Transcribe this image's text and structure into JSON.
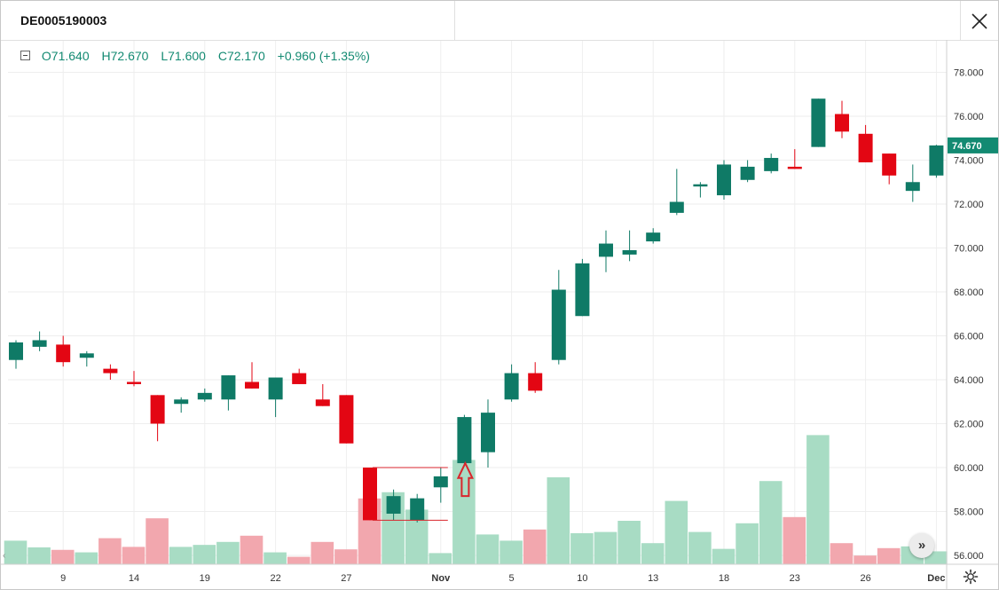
{
  "window": {
    "title": "DE0005190003"
  },
  "legend": {
    "open": "O71.640",
    "high": "H72.670",
    "low": "L71.600",
    "close": "C72.170",
    "change": "+0.960 (+1.35%)"
  },
  "price_tag": "74.670",
  "colors": {
    "up": "#0f7a66",
    "down": "#e30613",
    "volume_up": "#a8dcc4",
    "volume_down": "#f2a7ae",
    "price_tag": "#138a72",
    "annotation": "#d9262c"
  },
  "icons": [
    "close-icon",
    "collapse-icon",
    "scroll-to-latest-icon",
    "settings-icon",
    "arrow-up-annotation-icon"
  ],
  "chart_data": {
    "type": "candlestick",
    "ylim": [
      55.5,
      79.2
    ],
    "y_ticks": [
      "56.000",
      "58.000",
      "60.000",
      "62.000",
      "64.000",
      "66.000",
      "68.000",
      "70.000",
      "72.000",
      "74.000",
      "76.000",
      "78.000"
    ],
    "x_labels": [
      {
        "label": "9",
        "index": 2
      },
      {
        "label": "14",
        "index": 5
      },
      {
        "label": "19",
        "index": 8
      },
      {
        "label": "22",
        "index": 11
      },
      {
        "label": "27",
        "index": 14
      },
      {
        "label": "Nov",
        "index": 18
      },
      {
        "label": "5",
        "index": 21
      },
      {
        "label": "10",
        "index": 24
      },
      {
        "label": "13",
        "index": 27
      },
      {
        "label": "18",
        "index": 30
      },
      {
        "label": "23",
        "index": 33
      },
      {
        "label": "26",
        "index": 36
      },
      {
        "label": "Dec",
        "index": 39
      }
    ],
    "candles": [
      {
        "o": 64.9,
        "h": 65.8,
        "l": 64.5,
        "c": 65.7
      },
      {
        "o": 65.5,
        "h": 66.2,
        "l": 65.3,
        "c": 65.8
      },
      {
        "o": 65.6,
        "h": 66.0,
        "l": 64.6,
        "c": 64.8
      },
      {
        "o": 65.0,
        "h": 65.3,
        "l": 64.6,
        "c": 65.2
      },
      {
        "o": 64.5,
        "h": 64.7,
        "l": 64.0,
        "c": 64.3
      },
      {
        "o": 63.9,
        "h": 64.4,
        "l": 63.7,
        "c": 63.8
      },
      {
        "o": 63.3,
        "h": 63.3,
        "l": 61.2,
        "c": 62.0
      },
      {
        "o": 62.9,
        "h": 63.2,
        "l": 62.5,
        "c": 63.1
      },
      {
        "o": 63.1,
        "h": 63.6,
        "l": 63.0,
        "c": 63.4
      },
      {
        "o": 63.1,
        "h": 64.2,
        "l": 62.6,
        "c": 64.2
      },
      {
        "o": 63.9,
        "h": 64.8,
        "l": 63.6,
        "c": 63.6
      },
      {
        "o": 63.1,
        "h": 64.1,
        "l": 62.3,
        "c": 64.1
      },
      {
        "o": 64.3,
        "h": 64.5,
        "l": 63.8,
        "c": 63.8
      },
      {
        "o": 63.1,
        "h": 63.8,
        "l": 62.8,
        "c": 62.8
      },
      {
        "o": 63.3,
        "h": 63.3,
        "l": 61.1,
        "c": 61.1
      },
      {
        "o": 60.0,
        "h": 60.0,
        "l": 57.6,
        "c": 57.6
      },
      {
        "o": 57.9,
        "h": 59.0,
        "l": 57.6,
        "c": 58.7
      },
      {
        "o": 57.6,
        "h": 58.8,
        "l": 57.5,
        "c": 58.6
      },
      {
        "o": 59.1,
        "h": 60.0,
        "l": 58.4,
        "c": 59.6
      },
      {
        "o": 60.2,
        "h": 62.4,
        "l": 60.1,
        "c": 62.3
      },
      {
        "o": 60.7,
        "h": 63.1,
        "l": 60.0,
        "c": 62.5
      },
      {
        "o": 63.1,
        "h": 64.7,
        "l": 63.0,
        "c": 64.3
      },
      {
        "o": 64.3,
        "h": 64.8,
        "l": 63.4,
        "c": 63.5
      },
      {
        "o": 64.9,
        "h": 69.0,
        "l": 64.7,
        "c": 68.1
      },
      {
        "o": 66.9,
        "h": 69.5,
        "l": 66.9,
        "c": 69.3
      },
      {
        "o": 69.6,
        "h": 70.8,
        "l": 68.9,
        "c": 70.2
      },
      {
        "o": 69.7,
        "h": 70.8,
        "l": 69.4,
        "c": 69.9
      },
      {
        "o": 70.3,
        "h": 70.9,
        "l": 70.2,
        "c": 70.7
      },
      {
        "o": 71.6,
        "h": 73.6,
        "l": 71.5,
        "c": 72.1
      },
      {
        "o": 72.8,
        "h": 73.0,
        "l": 72.3,
        "c": 72.9
      },
      {
        "o": 72.4,
        "h": 74.0,
        "l": 72.2,
        "c": 73.8
      },
      {
        "o": 73.1,
        "h": 74.0,
        "l": 73.0,
        "c": 73.7
      },
      {
        "o": 73.5,
        "h": 74.3,
        "l": 73.4,
        "c": 74.1
      },
      {
        "o": 73.7,
        "h": 74.5,
        "l": 73.6,
        "c": 73.6
      },
      {
        "o": 74.6,
        "h": 76.8,
        "l": 74.6,
        "c": 76.8
      },
      {
        "o": 76.1,
        "h": 76.7,
        "l": 75.0,
        "c": 75.3
      },
      {
        "o": 75.2,
        "h": 75.6,
        "l": 73.9,
        "c": 73.9
      },
      {
        "o": 74.3,
        "h": 74.3,
        "l": 72.9,
        "c": 73.3
      },
      {
        "o": 72.6,
        "h": 73.8,
        "l": 72.1,
        "c": 73.0
      },
      {
        "o": 73.3,
        "h": 74.7,
        "l": 73.2,
        "c": 74.67
      }
    ],
    "volume": [
      {
        "v": 0.95,
        "dir": "up"
      },
      {
        "v": 0.68,
        "dir": "up"
      },
      {
        "v": 0.58,
        "dir": "down"
      },
      {
        "v": 0.48,
        "dir": "up"
      },
      {
        "v": 1.05,
        "dir": "down"
      },
      {
        "v": 0.7,
        "dir": "down"
      },
      {
        "v": 1.85,
        "dir": "down"
      },
      {
        "v": 0.7,
        "dir": "up"
      },
      {
        "v": 0.78,
        "dir": "up"
      },
      {
        "v": 0.9,
        "dir": "up"
      },
      {
        "v": 1.15,
        "dir": "down"
      },
      {
        "v": 0.48,
        "dir": "up"
      },
      {
        "v": 0.3,
        "dir": "down"
      },
      {
        "v": 0.9,
        "dir": "down"
      },
      {
        "v": 0.6,
        "dir": "down"
      },
      {
        "v": 2.65,
        "dir": "down"
      },
      {
        "v": 2.9,
        "dir": "up"
      },
      {
        "v": 2.2,
        "dir": "up"
      },
      {
        "v": 0.45,
        "dir": "up"
      },
      {
        "v": 4.2,
        "dir": "up"
      },
      {
        "v": 1.2,
        "dir": "up"
      },
      {
        "v": 0.95,
        "dir": "up"
      },
      {
        "v": 1.4,
        "dir": "down"
      },
      {
        "v": 3.5,
        "dir": "up"
      },
      {
        "v": 1.25,
        "dir": "up"
      },
      {
        "v": 1.3,
        "dir": "up"
      },
      {
        "v": 1.75,
        "dir": "up"
      },
      {
        "v": 0.85,
        "dir": "up"
      },
      {
        "v": 2.55,
        "dir": "up"
      },
      {
        "v": 1.3,
        "dir": "up"
      },
      {
        "v": 0.62,
        "dir": "up"
      },
      {
        "v": 1.65,
        "dir": "up"
      },
      {
        "v": 3.35,
        "dir": "up"
      },
      {
        "v": 1.9,
        "dir": "down"
      },
      {
        "v": 5.2,
        "dir": "up"
      },
      {
        "v": 0.85,
        "dir": "down"
      },
      {
        "v": 0.35,
        "dir": "down"
      },
      {
        "v": 0.65,
        "dir": "down"
      },
      {
        "v": 0.72,
        "dir": "up"
      },
      {
        "v": 0.52,
        "dir": "up"
      }
    ],
    "annotations": {
      "range_box": {
        "from_index": 15,
        "to_index": 18,
        "high": 60.0,
        "low": 57.6
      },
      "arrow": {
        "index": 19,
        "top": 60.2,
        "bottom": 58.7
      }
    }
  }
}
